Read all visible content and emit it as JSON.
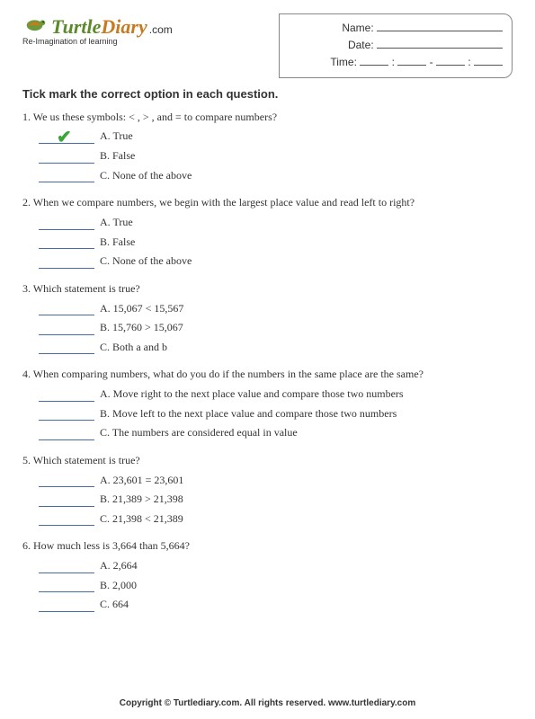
{
  "logo": {
    "word1": "Turtle",
    "word2": "Diary",
    "suffix": ".com",
    "tagline": "Re-Imagination of learning",
    "color1": "#5a8a2a",
    "color2": "#c97a1f"
  },
  "meta": {
    "name_label": "Name:",
    "date_label": "Date:",
    "time_label": "Time:",
    "colon": ":",
    "dash": "-"
  },
  "instruction": "Tick mark the correct option in each question.",
  "questions": [
    {
      "num": "1.",
      "text": "We us these symbols: < ,  > , and = to compare numbers?",
      "options": [
        "A. True",
        "B. False",
        "C. None of the above"
      ],
      "checked": 0
    },
    {
      "num": "2.",
      "text": "When we compare numbers, we begin with the largest place value and read left to right?",
      "options": [
        "A. True",
        "B. False",
        "C. None of the above"
      ],
      "checked": -1
    },
    {
      "num": "3.",
      "text": "Which statement is true?",
      "options": [
        "A. 15,067 < 15,567",
        "B. 15,760 > 15,067",
        "C. Both a and b"
      ],
      "checked": -1
    },
    {
      "num": "4.",
      "text": "When comparing numbers, what do you do if the numbers in the same place are the same?",
      "options": [
        "A. Move right to the next place value and compare those two numbers",
        "B. Move left to the next place value and compare those two numbers",
        "C. The numbers are considered equal in value"
      ],
      "checked": -1
    },
    {
      "num": "5.",
      "text": "Which statement is true?",
      "options": [
        "A. 23,601 = 23,601",
        "B. 21,389 > 21,398",
        "C. 21,398 < 21,389"
      ],
      "checked": -1
    },
    {
      "num": "6.",
      "text": "How much less is 3,664 than 5,664?",
      "options": [
        "A. 2,664",
        "B. 2,000",
        "C. 664"
      ],
      "checked": -1
    }
  ],
  "footer": "Copyright © Turtlediary.com. All rights reserved. www.turtlediary.com"
}
